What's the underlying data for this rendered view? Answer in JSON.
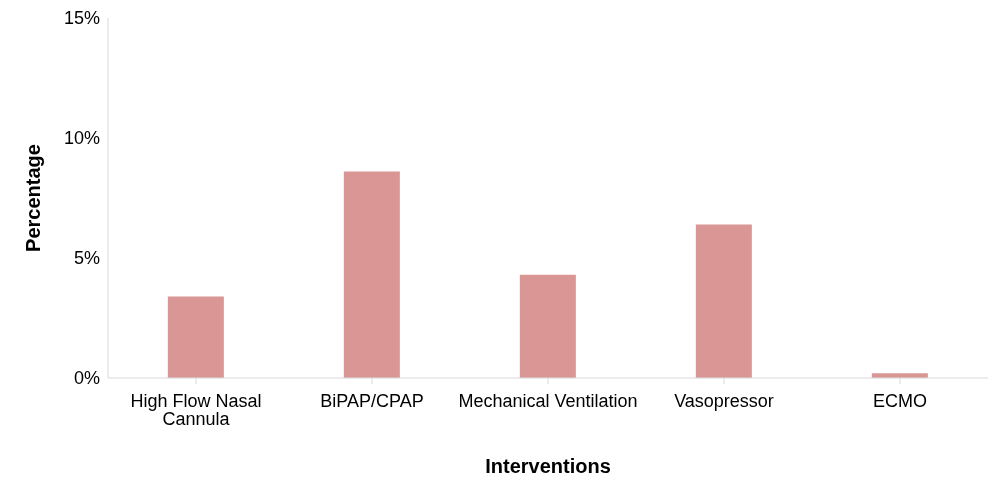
{
  "chart_data": {
    "type": "bar",
    "xlabel": "Interventions",
    "ylabel": "Percentage",
    "categories": [
      "High Flow Nasal Cannula",
      "BiPAP/CPAP",
      "Mechanical Ventilation",
      "Vasopressor",
      "ECMO"
    ],
    "values": [
      3.4,
      8.6,
      4.3,
      6.4,
      0.2
    ],
    "color": "#d99694",
    "ylim": [
      0,
      15
    ],
    "yticks": [
      {
        "value": 0,
        "label": "0%"
      },
      {
        "value": 5,
        "label": "5%"
      },
      {
        "value": 10,
        "label": "10%"
      },
      {
        "value": 15,
        "label": "15%"
      }
    ],
    "grid": false,
    "legend": false
  }
}
